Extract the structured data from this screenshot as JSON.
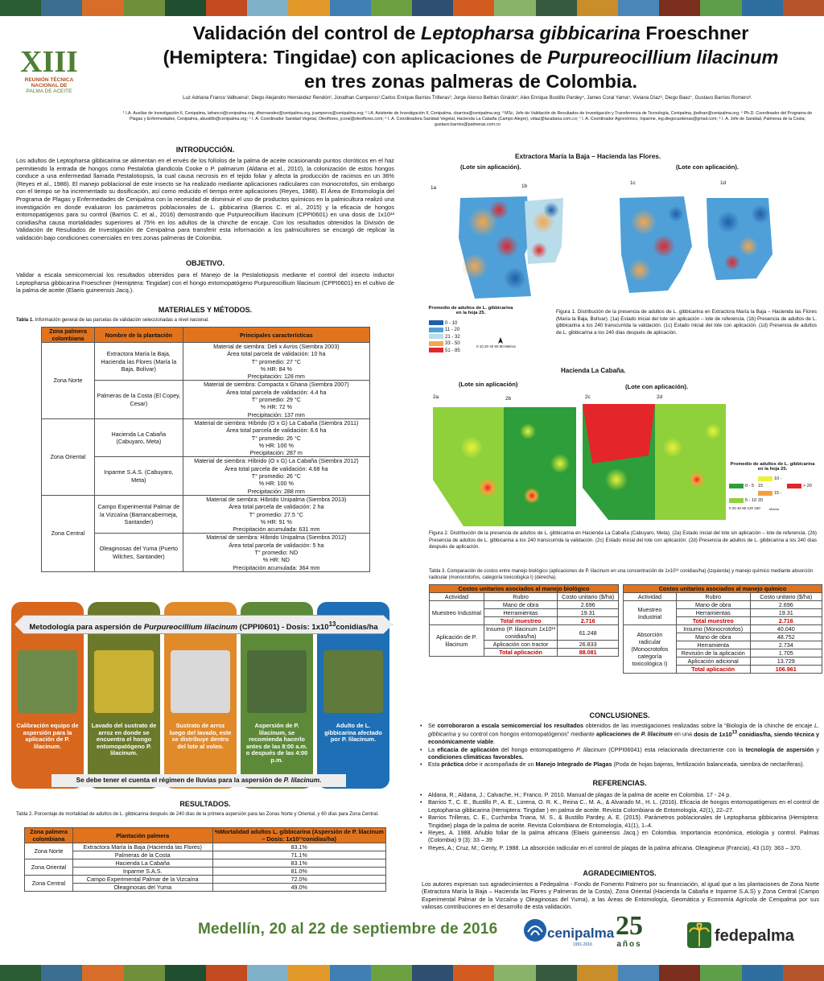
{
  "colors": {
    "orange": "#e2731d",
    "green": "#4f7f34",
    "red": "#c00000",
    "darkgreen": "#1f4f2f"
  },
  "topbar_colors": [
    "#2a5d34",
    "#3b6e8f",
    "#d76d28",
    "#6f8f3a",
    "#1f4f2f",
    "#c44a1f",
    "#7fb2c9",
    "#e39a2a",
    "#3f7fb3",
    "#6da040",
    "#2e4f6f",
    "#d45b20",
    "#8ab36a",
    "#355a3e",
    "#c98d2a",
    "#4b86b8",
    "#7c2f1e",
    "#5f9f4a",
    "#2f6f9f",
    "#b8542a"
  ],
  "logo": {
    "numeral": "XIII",
    "line1": "REUNIÓN TÉCNICA",
    "line2": "NACIONAL DE",
    "line3": "PALMA DE ACEITE"
  },
  "title": {
    "line1a": "Validación del control de ",
    "line1b": "Leptopharsa gibbicarina",
    "line1c": " Froeschner",
    "line2a": "(Hemiptera: Tingidae) con aplicaciones de ",
    "line2b": "Purpureocillium lilacinum",
    "line3": "en tres zonas palmeras de Colombia."
  },
  "authors": "Luz Adriana Franco Valbuena¹; Diego Alejandro Hernández Rendón¹, Jonathan Camperos¹;Carlos Enrique Barrios Trilleras²; Jorge Alonso Beltrán Giraldo³; Alex Enrique Bustillo Pardey⁴, James Coral Yama⁵, Viviana Díaz⁶, Diego Baez⁷, Gustavo Barrios Romero⁸.",
  "affiliations": "¹ I.A. Auxiliar de Investigación II, Cenipalma, lafranco@cenipalma.org, dhernandez@cenipalma.org, jcamperos@cenipalma.org; ² I.A. Asistente de Investigación II, Cenipalma, cbarrios@cenipalma.org; ³ MSc. Jefe de Validación de Resultados de Investigación y Transferencia de Tecnología, Cenipalma, jbeltran@cenipalma.org; ⁴ Ph.D. Coordinador del Programa de Plagas y Enfermedades, Cenipalma, abustillo@cenipalma.org; ⁵ I. A. Coordinador Sanidad Vegetal, Oleoflores, jcoral@oleoflores.com; ⁶ I. A. Coordinadora Sanidad Vegetal, Hacienda La Cabaña (Campo Alegre), vdiaz@lacabana.com.co; ⁷ I. A. Coordinador Agronómico, Inparme, ing.diegocardenas@gmail.com; ⁸ I. A. Jefe de Sanidad, Palmeras de la Costa; gustavo.barrios@palmeras.com.co",
  "intro": {
    "heading": "INTRODUCCIÓN.",
    "text": "Los adultos de Leptopharsa gibbicarina se alimentan en el envés de los folíolos de la palma de aceite ocasionando puntos cloróticos en el haz permitiendo la entrada de hongos como Pestalotia glandicola Cooke o P. palmarum (Aldana et al., 2010), la colonización de estos hongos conduce a una enfermedad llamada Pestalotiopsis, la cual causa necrosis en el tejido foliar y afecta la producción de racimos en un 36% (Reyes et al., 1988). El manejo poblacional de este insecto se ha realizado mediante aplicaciones radiculares con monocrotofos, sin embargo con el tiempo se ha incrementado su dosificación, así como reducido el tiempo entre aplicaciones (Reyes, 1988). El Área de Entomología del Programa de Plagas y Enfermedades de Cenipalma con la necesidad de disminuir el uso de productos químicos en la palmicultura realizó una investigación en donde evaluaron los parámetros poblacionales de L. gibbicarina (Barrios C. et al., 2015) y la eficacia de hongos entomopatógenos para su control (Barrios C. et al., 2016) demostrando que Purpureocillium lilacinum (CPPI0601) en una dosis de 1x10¹³ conidias/ha causa mortalidades superiores al 75% en los adultos de la chinche de encaje. Con los resultados obtenidos la División de Validación de Resultados de Investigación de Cenipalma para transferir esta información a los palmicultores se encargó de replicar la validación bajo condiciones comerciales en tres zonas palmeras de Colombia."
  },
  "objective": {
    "heading": "OBJETIVO.",
    "text": "Validar a escala semicomercial los resultados obtenidos para el Manejo de la Pestalotiopsis mediante el control del insecto inductor Leptopharsa gibbicarina Froeschner (Hemiptera: Tingidae) con el hongo entomopatógeno Purpureocillium lilacinum (CPPI0601) en el cultivo de la palma de aceite (Elaeis guineensis Jacq.)."
  },
  "methods": {
    "heading": "MATERIALES Y MÉTODOS.",
    "table1_caption_bold": "Tabla 1.",
    "table1_caption": " Información general de las parcelas de validación seleccionadas a nivel nacional.",
    "table1_headers": [
      "Zona palmera colombiana",
      "Nombre de la plantación",
      "Principales características"
    ],
    "table1_rows": [
      {
        "zone": "Zona Norte",
        "span": 2,
        "farm": "Extractora María la Baja, Hacienda las Flores (María la Baja, Bolívar)",
        "lines": [
          "Material de siembra: Deli x Avros (Siembra 2003)",
          "Área total parcela de validación: 10 ha",
          "T° promedio: 27 °C",
          "% HR: 84 %",
          "Precipitación: 128 mm"
        ]
      },
      {
        "farm": "Palmeras de la Costa (El Copey, Cesar)",
        "lines": [
          "Material de siembra: Compacta x Ghana (Siembra 2007)",
          "Área total parcela de validación: 4.4 ha",
          "T° promedio: 29 °C",
          "% HR: 72 %",
          "Precipitación: 137 mm"
        ]
      },
      {
        "zone": "Zona Oriental",
        "span": 2,
        "farm": "Hacienda La Cabaña (Cabuyaro, Meta)",
        "lines": [
          "Material de siembra: Híbrido (O x G) La Cabaña (Siembra 2011)",
          "Área total parcela de validación: 6.6 ha",
          "T° promedio: 26 °C",
          "% HR: 100 %",
          "Precipitación: 287 m"
        ]
      },
      {
        "farm": "Inparme S.A.S. (Cabuyaro, Meta)",
        "lines": [
          "Material de siembra: Híbrido (O x G) La Cabaña (Siembra 2012)",
          "Área total parcela de validación: 4.68 ha",
          "T° promedio: 26 °C",
          "% HR: 100 %",
          "Precipitación: 288 mm"
        ]
      },
      {
        "zone": "Zona Central",
        "span": 2,
        "farm": "Campo Experimental Palmar de la Vizcaína (Barrancabermeja, Santander)",
        "lines": [
          "Material de siembra: Híbrido Unipalma (Siembra 2013)",
          "Área total parcela de validación: 2 ha",
          "T° promedio: 27.5 °C",
          "% HR:  91 %",
          "Precipitación acumulada: 631 mm"
        ]
      },
      {
        "farm": "Oleaginosas del Yuma (Puerto Wilches, Santander)",
        "lines": [
          "Material de siembra: Híbrido Unipalma (Siembra 2012)",
          "Área total parcela de validación: 5 ha",
          "T° promedio: ND",
          "% HR:  ND",
          "Precipitación acumulada: 364 mm"
        ]
      }
    ]
  },
  "methodology": {
    "banner": "Metodología para aspersión de Purpureocillium lilacinum (CPPI0601) - Dosis: 1x10¹³conidias/ha",
    "steps": [
      {
        "text": "Calibración equipo de aspersión para la aplicación de P. lilacinum.",
        "color": "#d8661c",
        "photo": "#6d8a4a"
      },
      {
        "text": "Lavado del sustrato de arroz en donde se encuentra el hongo entomopatógeno P. lilacinum.",
        "color": "#6b7a2a",
        "photo": "#c9b233"
      },
      {
        "text": "Sustrato de arroz luego del lavado, este se distribuye dentro del lote al voleo.",
        "color": "#e08a2a",
        "photo": "#d9d9d9"
      },
      {
        "text": "Aspersión de P. lilacinum, se recomienda hacerlo antes de las 8:00 a.m. o después de las 4:00 p.m.",
        "color": "#5d8a38",
        "photo": "#4d6b3a"
      },
      {
        "text": "Adulto de L. gibbicarina afectado por P. lilacinum.",
        "color": "#1e6fb5",
        "photo": "#5f7a3a"
      }
    ],
    "note": "Se debe tener el cuenta el régimen de lluvias para la aspersión de P. lilacinum."
  },
  "results": {
    "heading": "RESULTADOS.",
    "table2_caption": "Tabla 2. Porcentaje de mortalidad de adultos de L. gibbicarina después de 240 días de la primera aspersión para las Zonas Norte y Oriental, y 60 días para Zona Central.",
    "table2_headers": [
      "Zona palmera colombiana",
      "Plantación palmera",
      "%Mortalidad adultos L. gibbicarina (Aspersión de P. lilacinum – Dosis: 1x10¹³conidias/ha)"
    ],
    "table2_rows": [
      {
        "zone": "Zona Norte",
        "span": 2,
        "farm": "Extractora María la Baja (Hacienda las Flores)",
        "value": "83.1%"
      },
      {
        "farm": "Palmeras de la Costa",
        "value": "71.1%"
      },
      {
        "zone": "Zona Oriental",
        "span": 2,
        "farm": "Hacienda La Cabaña",
        "value": "83.1%"
      },
      {
        "farm": "Inparme S.A.S.",
        "value": "81.0%"
      },
      {
        "zone": "Zona Central",
        "span": 2,
        "farm": "Campo Experimental Palmar de la Vizcaína",
        "value": "72.0%"
      },
      {
        "farm": "Oleaginosas del Yuma",
        "value": "49.0%"
      }
    ]
  },
  "fig1": {
    "title": "Extractora María la Baja – Hacienda las Flores.",
    "left": "(Lote sin aplicación).",
    "right": "(Lote con aplicación).",
    "panels": [
      "1a",
      "1b",
      "1c",
      "1d"
    ],
    "legend_title": "Promedio de adultos de L. gibbicarina en la hoja 25.",
    "legend": [
      {
        "label": "0 - 10",
        "color": "#1f5fa8"
      },
      {
        "label": "11 - 20",
        "color": "#4fa0d8"
      },
      {
        "label": "21 - 32",
        "color": "#b9dcea"
      },
      {
        "label": "33 - 50",
        "color": "#f5a64c"
      },
      {
        "label": "51 - 85",
        "color": "#e4262a"
      }
    ],
    "scale": "0  10 20    40    60   80 Metros",
    "caption": "Figura 1. Distribución de la presencia de adultos de L. gibbicarina en Extractora María la Baja – Hacienda las Flores (María la Baja, Bolívar). (1a) Estado inicial del lote sin aplicación – lote de referencia. (1b) Presencia de adultos de L. gibbicarina a los 240 transcurrida la validación. (1c) Estado inicial del lote con aplicación. (1d) Presencia de adultos de L. gibbicarina a los 240 días después de aplicación."
  },
  "fig2": {
    "title": "Hacienda La Cabaña.",
    "left": "(Lote sin aplicación)",
    "right": "(Lote con aplicación).",
    "panels": [
      "2a",
      "2b",
      "2c",
      "2d"
    ],
    "legend_title": "Promedio de adultos de L. gibbicarina en la hoja 25.",
    "legend": [
      {
        "label": "0 - 5",
        "color": "#2e9e3a"
      },
      {
        "label": "10 - 15",
        "color": "#eaf23a"
      },
      {
        "label": "> 20",
        "color": "#e4262a"
      },
      {
        "label": "5 - 10",
        "color": "#8fd13a"
      },
      {
        "label": "15 - 20",
        "color": "#f4a03a"
      }
    ],
    "scale": "0  20 40     80    120   160",
    "scale_unit": "Metros",
    "caption": "Figura 2. Distribución de la presencia de adultos de L. gibbicarina en Hacienda La Cabaña (Cabuyaro, Meta). (2a) Estado inicial del lote sin aplicación – lote de referencia. (2b) Presencia de adultos de L. gibbicarina a los 240 transcurrida la validación. (2c) Estado inicial del lote con aplicación. (2d) Presencia de adultos de L. gibbicarina a los 240 días después de aplicación."
  },
  "table3": {
    "caption": "Tabla 3. Comparación de costos entre manejo biológico (aplicaciones de P. lilacinum en una concentración de 1x10¹³ conidias/ha) (izquierda) y manejo químico mediante absorción radicular (monocrotofos, categoría toxicológica I) (derecha).",
    "bio_title": "Costos unitarios asociados al manejo biológico",
    "chem_title": "Costos unitarios asociados al manejo químico",
    "cols": [
      "Actividad",
      "Rubro",
      "Costo unitario ($/ha)"
    ],
    "bio": [
      {
        "activity": "Muestreo Industrial",
        "rows": [
          [
            "Mano de obra",
            "2.696"
          ],
          [
            "Herramientas",
            "19.31"
          ],
          [
            "Total muestreo",
            "2.716"
          ]
        ]
      },
      {
        "activity": "Aplicación de P. lilacinum",
        "rows": [
          [
            "Insumo (P. lilacinum 1x10¹³ conidias/ha)",
            "61.248"
          ],
          [
            "Aplicación con tractor",
            "26.833"
          ],
          [
            "Total aplicación",
            "88.081"
          ]
        ]
      }
    ],
    "chem": [
      {
        "activity": "Muestreo Industrial",
        "rows": [
          [
            "Mano de obra",
            "2.696"
          ],
          [
            "Herramientas",
            "19.31"
          ],
          [
            "Total muestreo",
            "2.716"
          ]
        ]
      },
      {
        "activity": "Absorción radicular (Monocrotofos categoría toxicológica I)",
        "rows": [
          [
            "Insumo (Monocrotofos)",
            "40.040"
          ],
          [
            "Mano de obra",
            "48.752"
          ],
          [
            "Herramienta",
            "2.734"
          ],
          [
            "Revisión de la aplicación",
            "1.705"
          ],
          [
            "Aplicación adicional",
            "13.729"
          ],
          [
            "Total aplicación",
            "106.961"
          ]
        ]
      }
    ]
  },
  "conclusions": {
    "heading": "CONCLUSIONES.",
    "items": [
      "Se corroboraron a escala semicomercial los resultados obtenidos de las investigaciones realizadas sobre la “Biología de la chinche de encaje L. gibbicarina y su control con hongos entomopatógenos” mediante aplicaciones de P. lilacinum en una dosis de 1x10¹³ conidias/ha, siendo técnica y económicamente viable.",
      "La eficacia de aplicación del hongo entomopatógeno P. lilacinum (CPPI06041) esta relacionada directamente con la tecnología de aspersión y condiciones climáticas favorables.",
      "Esta práctica debe ir acompañada de un Manejo Integrado de Plagas (Poda de hojas bajeras, fertilización balanceada, siembra de nectaríferas)."
    ]
  },
  "references": {
    "heading": "REFERENCIAS.",
    "items": [
      "Aldana, R.; Aldana, J.; Calvache, H.; Franco, P. 2010. Manual de plagas de la palma de aceite en Colombia. 17 - 24 p.",
      "Barrios T., C. E., Bustillo P., A. E., Lorena, O. R. K., Reina C., M. A., & Alvarado M., H. L. (2016). Eficacia de hongos entomopatógenos en el control de Leptopharsa gibbicarina (Hemiptera: Tingidae ) en palma de aceite. Revista Colombiana de Entomología, 42(1), 22–27.",
      "Barrios Trilleras, C. E., Cuchimba Triana, M. S., & Bustillo Pardey, A. E. (2015). Parámetros poblacionales de Leptopharsa gibbicarina (Hemiptera: Tingidae) plaga de la palma de aceite. Revista Colombiana de Entomología, 41(1), 1–4.",
      "Reyes, A. 1988. Añublo foliar de la palma africana (Elaeis guineensis Jacq.) en Colombia. Importancia económica, etiología y control. Palmas (Colombia) 9 (3): 33 – 39",
      "Reyes, A.; Cruz, M.; Genty, P. 1988. La absorción radicular en el control de plagas de la palma africana. Oleagineux (Francia), 43 (10): 363 – 370."
    ]
  },
  "acknowledgments": {
    "heading": "AGRADECIMIENTOS.",
    "text": "Los autores expresan sus agradecimientos a Fedepalma - Fondo de Fomento Palmero por su financiación, al igual que a las plantaciones de Zona Norte (Extractora María la Baja – Hacienda las Flores y Palmeras de la Costa), Zona Oriental (Hacienda la Cabaña e Inparme S.A.S) y Zona Central (Campo Experimental Palmar de la Vizcaína y Oleaginosas del Yuma), a las Áreas de Entomología, Geomática y Economía Agrícola de Cenipalma por sus valiosas contribuciones en el desarrollo de esta validación."
  },
  "footer": {
    "date": "Medellín, 20 al 22 de septiembre de 2016",
    "cenipalma": "cenipalma",
    "cenipalma_years": "1991-2016",
    "anos_number": "25",
    "anos": "años",
    "fedepalma": "fedepalma"
  }
}
